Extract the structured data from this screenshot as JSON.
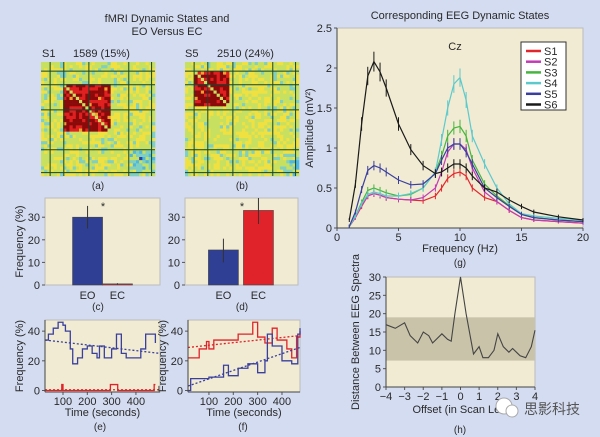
{
  "left_title": [
    "fMRI Dynamic States and",
    "EO Versus EC"
  ],
  "right_title": "Corresponding EEG Dynamic States",
  "panels": {
    "a": {
      "label": "(a)",
      "state": "S1",
      "count": "1589 (15%)"
    },
    "b": {
      "label": "(b)",
      "state": "S5",
      "count": "2510 (24%)"
    }
  },
  "colors": {
    "background": "#d4dcf1",
    "plot_bg": "#f0ebd2",
    "eo": "#2e3f94",
    "ec": "#e0232a",
    "band": "#c9c3aa"
  },
  "watermark": "思影科技",
  "chart_data": [
    {
      "id": "c",
      "type": "bar",
      "panel_label": "(c)",
      "categories": [
        "EO",
        "EC"
      ],
      "values": [
        30,
        0.5
      ],
      "error_low": [
        25,
        0.2
      ],
      "error_high": [
        35,
        0.8
      ],
      "colors": [
        "#2e3f94",
        "#e0232a"
      ],
      "ylabel": "Frequency (%)",
      "ylim": [
        0,
        38.5
      ],
      "yticks": [
        "0",
        "10",
        "20",
        "30"
      ],
      "annotation": "*"
    },
    {
      "id": "d",
      "type": "bar",
      "panel_label": "(d)",
      "categories": [
        "EO",
        "EC"
      ],
      "values": [
        15.5,
        33
      ],
      "error_low": [
        10,
        27
      ],
      "error_high": [
        20.5,
        38.5
      ],
      "colors": [
        "#2e3f94",
        "#e0232a"
      ],
      "ylabel": "",
      "ylim": [
        0,
        38.5
      ],
      "yticks": [
        "0",
        "10",
        "20",
        "30"
      ],
      "annotation": "*"
    },
    {
      "id": "e",
      "type": "line",
      "panel_label": "(e)",
      "xlabel": "Time (seconds)",
      "ylabel": "Frequency (%)",
      "xlim": [
        26,
        499
      ],
      "ylim": [
        -1,
        47.5
      ],
      "xticks": [
        "100",
        "200",
        "300",
        "400"
      ],
      "yticks": [
        "0",
        "20",
        "40"
      ],
      "series": [
        {
          "color": "#3a3f9e",
          "x": [
            25,
            40,
            60,
            80,
            100,
            110,
            130,
            140,
            160,
            180,
            200,
            220,
            240,
            250,
            270,
            300,
            320,
            340,
            360,
            400,
            420,
            440,
            470,
            480
          ],
          "y": [
            34,
            38,
            42,
            46,
            44,
            40,
            28,
            18,
            22,
            28,
            30,
            25,
            22,
            30,
            22,
            28,
            38,
            25,
            22,
            22,
            28,
            38,
            38,
            32
          ],
          "trend": [
            34,
            25
          ]
        },
        {
          "color": "#e0232a",
          "x": [
            25,
            90,
            95,
            100,
            290,
            295,
            320,
            325,
            470,
            475,
            480
          ],
          "y": [
            0,
            0,
            4,
            0,
            0,
            4,
            4,
            0,
            0,
            4,
            4
          ],
          "trend": [
            0.5,
            0.5
          ]
        }
      ]
    },
    {
      "id": "f",
      "type": "line",
      "panel_label": "(f)",
      "xlabel": "Time (seconds)",
      "ylabel": "Frequency (%)",
      "xlim": [
        14,
        474
      ],
      "ylim": [
        -1,
        47.5
      ],
      "xticks": [
        "100",
        "200",
        "300",
        "400"
      ],
      "yticks": [
        "0",
        "20",
        "40"
      ],
      "series": [
        {
          "color": "#e0232a",
          "x": [
            14,
            50,
            60,
            90,
            100,
            120,
            200,
            220,
            260,
            280,
            300,
            330,
            360,
            380,
            420,
            440,
            460,
            474
          ],
          "y": [
            22,
            22,
            28,
            33,
            28,
            34,
            34,
            38,
            38,
            46,
            36,
            32,
            42,
            34,
            28,
            22,
            36,
            40
          ],
          "trend": [
            29,
            37
          ]
        },
        {
          "color": "#3a3f9e",
          "x": [
            14,
            25,
            60,
            100,
            160,
            180,
            220,
            260,
            300,
            330,
            340,
            360,
            400,
            440,
            465,
            474
          ],
          "y": [
            0,
            8,
            8,
            9,
            17,
            10,
            15,
            18,
            12,
            20,
            38,
            30,
            20,
            18,
            38,
            42
          ],
          "trend": [
            3,
            29
          ]
        }
      ]
    },
    {
      "id": "g",
      "type": "line",
      "panel_label": "(g)",
      "title": "Corresponding EEG Dynamic States",
      "annotation": "Cz",
      "xlabel": "Frequency (Hz)",
      "ylabel": "Amplitude (mV²)",
      "xlim": [
        0,
        20
      ],
      "ylim": [
        0,
        2.5
      ],
      "xticks": [
        "0",
        "5",
        "10",
        "15",
        "20"
      ],
      "yticks": [
        "0",
        "0.5",
        "1",
        "1.5",
        "2",
        "2.5"
      ],
      "legend": "top-right",
      "x": [
        1,
        1.5,
        2,
        2.5,
        3,
        3.5,
        4,
        5,
        6,
        7,
        8,
        8.5,
        9,
        9.5,
        10,
        10.5,
        11,
        12,
        13,
        14,
        15,
        16,
        18,
        20
      ],
      "series": [
        {
          "name": "S1",
          "color": "#e3262d",
          "y": [
            0.02,
            0.13,
            0.27,
            0.4,
            0.43,
            0.41,
            0.38,
            0.36,
            0.35,
            0.34,
            0.4,
            0.5,
            0.62,
            0.68,
            0.7,
            0.65,
            0.5,
            0.38,
            0.33,
            0.22,
            0.13,
            0.1,
            0.08,
            0.06
          ]
        },
        {
          "name": "S2",
          "color": "#c33bb5",
          "y": [
            0.02,
            0.13,
            0.28,
            0.4,
            0.43,
            0.41,
            0.38,
            0.36,
            0.35,
            0.38,
            0.5,
            0.7,
            0.95,
            1.05,
            1.05,
            0.98,
            0.75,
            0.45,
            0.33,
            0.22,
            0.13,
            0.1,
            0.08,
            0.06
          ]
        },
        {
          "name": "S3",
          "color": "#46b53e",
          "y": [
            0.02,
            0.15,
            0.32,
            0.47,
            0.5,
            0.47,
            0.44,
            0.4,
            0.42,
            0.5,
            0.7,
            0.9,
            1.15,
            1.25,
            1.27,
            1.15,
            0.85,
            0.55,
            0.4,
            0.28,
            0.17,
            0.13,
            0.1,
            0.08
          ]
        },
        {
          "name": "S4",
          "color": "#5cc9cc",
          "y": [
            0.02,
            0.15,
            0.3,
            0.42,
            0.45,
            0.43,
            0.4,
            0.4,
            0.43,
            0.5,
            0.7,
            1.1,
            1.5,
            1.8,
            1.88,
            1.6,
            1.15,
            0.8,
            0.5,
            0.3,
            0.18,
            0.15,
            0.12,
            0.1
          ]
        },
        {
          "name": "S5",
          "color": "#3a3f9e",
          "y": [
            0.02,
            0.2,
            0.48,
            0.72,
            0.78,
            0.75,
            0.7,
            0.6,
            0.54,
            0.55,
            0.68,
            0.85,
            1.0,
            1.05,
            1.05,
            0.95,
            0.8,
            0.5,
            0.38,
            0.27,
            0.17,
            0.13,
            0.1,
            0.08
          ]
        },
        {
          "name": "S6",
          "color": "#1a1a1a",
          "y": [
            0.1,
            0.55,
            1.3,
            1.9,
            2.08,
            1.95,
            1.75,
            1.3,
            0.98,
            0.78,
            0.68,
            0.7,
            0.75,
            0.8,
            0.8,
            0.75,
            0.65,
            0.5,
            0.45,
            0.35,
            0.27,
            0.2,
            0.14,
            0.1
          ]
        }
      ]
    },
    {
      "id": "h",
      "type": "line",
      "panel_label": "(h)",
      "xlabel": "Offset (in Scan Leng",
      "ylabel": "Distance Between EEG Spectra",
      "xlim": [
        -4,
        4
      ],
      "ylim": [
        0,
        30
      ],
      "xticks": [
        "−4",
        "−3",
        "−2",
        "−1",
        "0",
        "1",
        "2",
        "3",
        "4"
      ],
      "yticks": [
        "0",
        "5",
        "10",
        "15",
        "20",
        "25",
        "30"
      ],
      "band": [
        7.2,
        19
      ],
      "x": [
        -4,
        -3.5,
        -3,
        -2.7,
        -2.3,
        -2,
        -1.7,
        -1.5,
        -1,
        -0.7,
        -0.5,
        -0.3,
        0,
        0.3,
        0.7,
        1,
        1.2,
        1.5,
        1.8,
        2,
        2.3,
        2.6,
        2.8,
        3,
        3.2,
        3.5,
        3.8,
        4
      ],
      "y": [
        17,
        16,
        17.5,
        14,
        12,
        15,
        14,
        12,
        14.5,
        13,
        12.5,
        20,
        30,
        20,
        9,
        11,
        8,
        8,
        10,
        14.5,
        11,
        9.5,
        10.5,
        9.5,
        8.5,
        8,
        11,
        15.5
      ]
    }
  ]
}
